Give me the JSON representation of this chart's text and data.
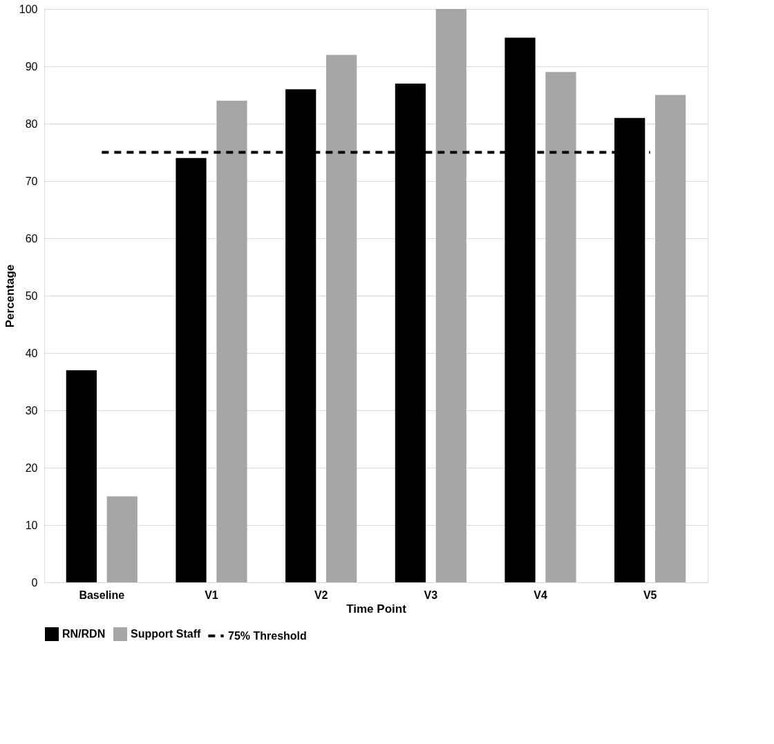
{
  "chart_data": {
    "type": "bar",
    "xlabel": "Time Point",
    "ylabel": "Percentage",
    "categories": [
      "Baseline",
      "V1",
      "V2",
      "V3",
      "V4",
      "V5"
    ],
    "series": [
      {
        "name": "RN/RDN",
        "color": "#000000",
        "values": [
          37,
          74,
          86,
          87,
          95,
          81
        ]
      },
      {
        "name": "Support Staff",
        "color": "#a6a6a6",
        "values": [
          15,
          84,
          92,
          100,
          89,
          85
        ]
      },
      {
        "name": "75% Threshold",
        "type": "line",
        "color": "#000000",
        "line_style": "dashed",
        "values": [
          75,
          75,
          75,
          75,
          75,
          75
        ]
      }
    ],
    "ylim": [
      0,
      100
    ],
    "yticks": [
      0,
      10,
      20,
      30,
      40,
      50,
      60,
      70,
      80,
      90,
      100
    ],
    "grid": "y",
    "legend": "bottom"
  }
}
